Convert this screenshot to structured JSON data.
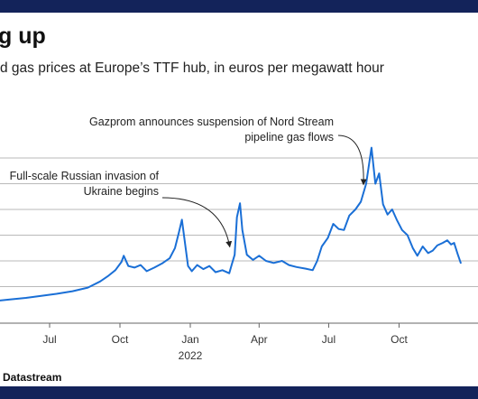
{
  "header": {
    "title": "g up",
    "subtitle": "d gas prices at Europe’s TTF hub, in euros per megawatt hour"
  },
  "footer": {
    "source": "Datastream"
  },
  "colors": {
    "line": "#1a6fd6",
    "grid": "#b9b9b9",
    "text": "#222222",
    "frame": "#13235a"
  },
  "chart_data": {
    "type": "line",
    "title": "",
    "xlabel": "",
    "ylabel": "",
    "ylim": [
      0,
      350
    ],
    "grid": true,
    "legend": "none",
    "x_ticks": [
      {
        "label": "Jul",
        "date": "2021-07-01"
      },
      {
        "label": "Oct",
        "date": "2021-10-01"
      },
      {
        "label": "Jan",
        "date": "2022-01-01"
      },
      {
        "label": "Apr",
        "date": "2022-04-01"
      },
      {
        "label": "Jul",
        "date": "2022-07-01"
      },
      {
        "label": "Oct",
        "date": "2022-10-01"
      }
    ],
    "year_labels": [
      {
        "label": "2022",
        "date": "2022-01-01"
      }
    ],
    "gridlines_y": [
      50,
      100,
      150,
      200,
      250,
      300
    ],
    "series": [
      {
        "values": [
          [
            "2021-04-01",
            20
          ],
          [
            "2021-04-20",
            22
          ],
          [
            "2021-05-10",
            25
          ],
          [
            "2021-05-31",
            28
          ],
          [
            "2021-06-20",
            32
          ],
          [
            "2021-07-10",
            36
          ],
          [
            "2021-07-31",
            41
          ],
          [
            "2021-08-20",
            48
          ],
          [
            "2021-09-05",
            60
          ],
          [
            "2021-09-15",
            70
          ],
          [
            "2021-09-25",
            82
          ],
          [
            "2021-10-03",
            98
          ],
          [
            "2021-10-06",
            110
          ],
          [
            "2021-10-12",
            90
          ],
          [
            "2021-10-20",
            87
          ],
          [
            "2021-10-28",
            92
          ],
          [
            "2021-11-05",
            80
          ],
          [
            "2021-11-15",
            87
          ],
          [
            "2021-11-25",
            95
          ],
          [
            "2021-12-05",
            105
          ],
          [
            "2021-12-12",
            125
          ],
          [
            "2021-12-17",
            155
          ],
          [
            "2021-12-21",
            180
          ],
          [
            "2021-12-25",
            135
          ],
          [
            "2021-12-29",
            90
          ],
          [
            "2022-01-03",
            80
          ],
          [
            "2022-01-10",
            92
          ],
          [
            "2022-01-18",
            84
          ],
          [
            "2022-01-26",
            90
          ],
          [
            "2022-02-03",
            78
          ],
          [
            "2022-02-12",
            82
          ],
          [
            "2022-02-21",
            76
          ],
          [
            "2022-02-24",
            92
          ],
          [
            "2022-02-28",
            112
          ],
          [
            "2022-03-03",
            185
          ],
          [
            "2022-03-07",
            212
          ],
          [
            "2022-03-10",
            160
          ],
          [
            "2022-03-16",
            112
          ],
          [
            "2022-03-24",
            102
          ],
          [
            "2022-04-01",
            110
          ],
          [
            "2022-04-10",
            100
          ],
          [
            "2022-04-20",
            96
          ],
          [
            "2022-05-01",
            100
          ],
          [
            "2022-05-10",
            92
          ],
          [
            "2022-05-20",
            88
          ],
          [
            "2022-06-01",
            85
          ],
          [
            "2022-06-10",
            82
          ],
          [
            "2022-06-16",
            100
          ],
          [
            "2022-06-22",
            128
          ],
          [
            "2022-06-30",
            145
          ],
          [
            "2022-07-07",
            172
          ],
          [
            "2022-07-14",
            162
          ],
          [
            "2022-07-21",
            160
          ],
          [
            "2022-07-28",
            188
          ],
          [
            "2022-08-05",
            200
          ],
          [
            "2022-08-12",
            215
          ],
          [
            "2022-08-19",
            250
          ],
          [
            "2022-08-26",
            320
          ],
          [
            "2022-08-31",
            250
          ],
          [
            "2022-09-05",
            270
          ],
          [
            "2022-09-10",
            210
          ],
          [
            "2022-09-16",
            190
          ],
          [
            "2022-09-22",
            200
          ],
          [
            "2022-09-28",
            180
          ],
          [
            "2022-10-05",
            160
          ],
          [
            "2022-10-12",
            150
          ],
          [
            "2022-10-19",
            125
          ],
          [
            "2022-10-25",
            110
          ],
          [
            "2022-11-01",
            128
          ],
          [
            "2022-11-08",
            115
          ],
          [
            "2022-11-14",
            120
          ],
          [
            "2022-11-20",
            130
          ],
          [
            "2022-11-27",
            135
          ],
          [
            "2022-12-03",
            140
          ],
          [
            "2022-12-08",
            132
          ],
          [
            "2022-12-12",
            135
          ],
          [
            "2022-12-17",
            112
          ],
          [
            "2022-12-21",
            95
          ]
        ]
      }
    ],
    "annotations": [
      {
        "lines": [
          "Full-scale Russian invasion of",
          "Ukraine begins"
        ],
        "date": "2022-02-24"
      },
      {
        "lines": [
          "Gazprom announces suspension of Nord Stream",
          "pipeline gas flows"
        ],
        "date": "2022-08-19"
      }
    ]
  }
}
